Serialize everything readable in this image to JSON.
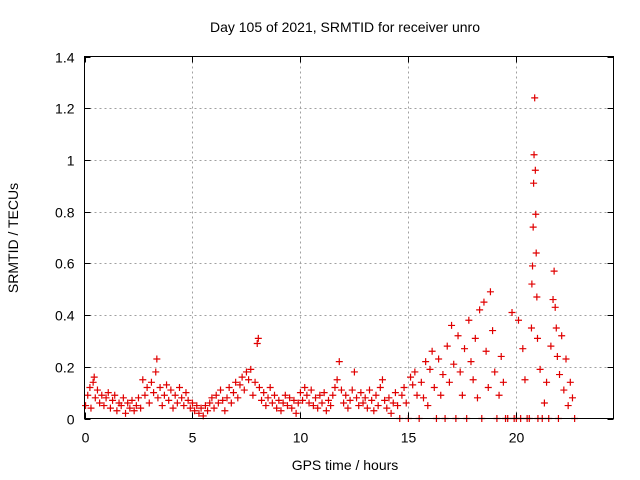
{
  "chart_data": {
    "type": "scatter",
    "title": "Day 105 of 2021, SRMTID for receiver unro",
    "xlabel": "GPS time / hours",
    "ylabel": "SRMTID / TECUs",
    "xlim": [
      0,
      24.5
    ],
    "ylim": [
      0,
      1.4
    ],
    "xticks": [
      0,
      5,
      10,
      15,
      20
    ],
    "xtick_labels": [
      "0",
      "5",
      "10",
      "15",
      "20"
    ],
    "yticks": [
      0,
      0.2,
      0.4,
      0.6,
      0.8,
      1.0,
      1.2,
      1.4
    ],
    "ytick_labels": [
      "0",
      "0.2",
      "0.4",
      "0.6",
      "0.8",
      "1",
      "1.2",
      "1.4"
    ],
    "grid": true,
    "marker": "+",
    "colors": {
      "series": "#e00000",
      "grid": "#a0a0a0",
      "axis": "#000000"
    },
    "series": [
      {
        "name": "SRMTID",
        "points": [
          [
            0.05,
            0.05
          ],
          [
            0.15,
            0.09
          ],
          [
            0.25,
            0.12
          ],
          [
            0.3,
            0.04
          ],
          [
            0.4,
            0.14
          ],
          [
            0.45,
            0.16
          ],
          [
            0.5,
            0.08
          ],
          [
            0.6,
            0.11
          ],
          [
            0.7,
            0.06
          ],
          [
            0.8,
            0.09
          ],
          [
            0.9,
            0.05
          ],
          [
            1.0,
            0.08
          ],
          [
            1.1,
            0.1
          ],
          [
            1.2,
            0.04
          ],
          [
            1.3,
            0.07
          ],
          [
            1.4,
            0.09
          ],
          [
            1.5,
            0.03
          ],
          [
            1.6,
            0.06
          ],
          [
            1.7,
            0.05
          ],
          [
            1.8,
            0.08
          ],
          [
            1.9,
            0.02
          ],
          [
            2.0,
            0.06
          ],
          [
            2.1,
            0.04
          ],
          [
            2.2,
            0.07
          ],
          [
            2.3,
            0.03
          ],
          [
            2.4,
            0.05
          ],
          [
            2.5,
            0.08
          ],
          [
            2.6,
            0.04
          ],
          [
            2.7,
            0.15
          ],
          [
            2.8,
            0.09
          ],
          [
            2.9,
            0.12
          ],
          [
            3.0,
            0.06
          ],
          [
            3.1,
            0.14
          ],
          [
            3.2,
            0.1
          ],
          [
            3.3,
            0.18
          ],
          [
            3.35,
            0.23
          ],
          [
            3.4,
            0.08
          ],
          [
            3.5,
            0.12
          ],
          [
            3.6,
            0.05
          ],
          [
            3.7,
            0.09
          ],
          [
            3.8,
            0.13
          ],
          [
            3.9,
            0.07
          ],
          [
            4.0,
            0.11
          ],
          [
            4.1,
            0.04
          ],
          [
            4.2,
            0.09
          ],
          [
            4.3,
            0.06
          ],
          [
            4.4,
            0.12
          ],
          [
            4.5,
            0.08
          ],
          [
            4.6,
            0.05
          ],
          [
            4.7,
            0.1
          ],
          [
            4.8,
            0.07
          ],
          [
            4.9,
            0.04
          ],
          [
            5.0,
            0.06
          ],
          [
            5.1,
            0.03
          ],
          [
            5.2,
            0.05
          ],
          [
            5.3,
            0.02
          ],
          [
            5.4,
            0.04
          ],
          [
            5.5,
            0.01
          ],
          [
            5.6,
            0.05
          ],
          [
            5.7,
            0.03
          ],
          [
            5.8,
            0.06
          ],
          [
            5.9,
            0.08
          ],
          [
            6.0,
            0.04
          ],
          [
            6.1,
            0.09
          ],
          [
            6.2,
            0.06
          ],
          [
            6.3,
            0.11
          ],
          [
            6.4,
            0.07
          ],
          [
            6.5,
            0.03
          ],
          [
            6.6,
            0.08
          ],
          [
            6.7,
            0.12
          ],
          [
            6.8,
            0.06
          ],
          [
            6.9,
            0.1
          ],
          [
            7.0,
            0.14
          ],
          [
            7.1,
            0.08
          ],
          [
            7.2,
            0.13
          ],
          [
            7.3,
            0.16
          ],
          [
            7.4,
            0.11
          ],
          [
            7.5,
            0.18
          ],
          [
            7.6,
            0.15
          ],
          [
            7.7,
            0.19
          ],
          [
            7.8,
            0.09
          ],
          [
            7.9,
            0.14
          ],
          [
            8.0,
            0.29
          ],
          [
            8.05,
            0.31
          ],
          [
            8.1,
            0.12
          ],
          [
            8.2,
            0.07
          ],
          [
            8.3,
            0.1
          ],
          [
            8.4,
            0.05
          ],
          [
            8.5,
            0.08
          ],
          [
            8.6,
            0.12
          ],
          [
            8.7,
            0.06
          ],
          [
            8.8,
            0.09
          ],
          [
            8.9,
            0.04
          ],
          [
            9.0,
            0.07
          ],
          [
            9.1,
            0.03
          ],
          [
            9.2,
            0.06
          ],
          [
            9.3,
            0.09
          ],
          [
            9.4,
            0.05
          ],
          [
            9.5,
            0.08
          ],
          [
            9.6,
            0.04
          ],
          [
            9.7,
            0.07
          ],
          [
            9.8,
            0.02
          ],
          [
            9.9,
            0.06
          ],
          [
            10.0,
            0.1
          ],
          [
            10.1,
            0.07
          ],
          [
            10.2,
            0.12
          ],
          [
            10.3,
            0.09
          ],
          [
            10.4,
            0.06
          ],
          [
            10.5,
            0.11
          ],
          [
            10.6,
            0.05
          ],
          [
            10.7,
            0.08
          ],
          [
            10.8,
            0.04
          ],
          [
            10.9,
            0.09
          ],
          [
            11.0,
            0.06
          ],
          [
            11.1,
            0.1
          ],
          [
            11.2,
            0.03
          ],
          [
            11.3,
            0.07
          ],
          [
            11.4,
            0.05
          ],
          [
            11.5,
            0.09
          ],
          [
            11.6,
            0.12
          ],
          [
            11.7,
            0.15
          ],
          [
            11.8,
            0.22
          ],
          [
            11.9,
            0.11
          ],
          [
            12.0,
            0.06
          ],
          [
            12.1,
            0.09
          ],
          [
            12.2,
            0.04
          ],
          [
            12.3,
            0.07
          ],
          [
            12.4,
            0.11
          ],
          [
            12.5,
            0.18
          ],
          [
            12.6,
            0.08
          ],
          [
            12.7,
            0.05
          ],
          [
            12.8,
            0.1
          ],
          [
            12.9,
            0.06
          ],
          [
            13.0,
            0.08
          ],
          [
            13.1,
            0.04
          ],
          [
            13.2,
            0.11
          ],
          [
            13.3,
            0.07
          ],
          [
            13.4,
            0.03
          ],
          [
            13.5,
            0.09
          ],
          [
            13.6,
            0.05
          ],
          [
            13.7,
            0.12
          ],
          [
            13.8,
            0.15
          ],
          [
            13.9,
            0.07
          ],
          [
            14.0,
            0.04
          ],
          [
            14.1,
            0.08
          ],
          [
            14.2,
            0.02
          ],
          [
            14.3,
            0.06
          ],
          [
            14.4,
            0.1
          ],
          [
            14.5,
            0.05
          ],
          [
            14.6,
            0.0
          ],
          [
            14.7,
            0.09
          ],
          [
            14.8,
            0.12
          ],
          [
            14.9,
            0.06
          ],
          [
            15.0,
            0.0
          ],
          [
            15.1,
            0.16
          ],
          [
            15.2,
            0.13
          ],
          [
            15.3,
            0.18
          ],
          [
            15.4,
            0.09
          ],
          [
            15.5,
            0.0
          ],
          [
            15.6,
            0.14
          ],
          [
            15.7,
            0.08
          ],
          [
            15.8,
            0.22
          ],
          [
            15.9,
            0.05
          ],
          [
            16.0,
            0.19
          ],
          [
            16.1,
            0.26
          ],
          [
            16.2,
            0.12
          ],
          [
            16.3,
            0.0
          ],
          [
            16.4,
            0.23
          ],
          [
            16.5,
            0.09
          ],
          [
            16.6,
            0.17
          ],
          [
            16.7,
            0.0
          ],
          [
            16.8,
            0.28
          ],
          [
            16.9,
            0.14
          ],
          [
            17.0,
            0.36
          ],
          [
            17.1,
            0.21
          ],
          [
            17.2,
            0.0
          ],
          [
            17.3,
            0.32
          ],
          [
            17.4,
            0.18
          ],
          [
            17.5,
            0.09
          ],
          [
            17.6,
            0.27
          ],
          [
            17.7,
            0.0
          ],
          [
            17.8,
            0.38
          ],
          [
            17.9,
            0.22
          ],
          [
            18.0,
            0.15
          ],
          [
            18.1,
            0.31
          ],
          [
            18.2,
            0.08
          ],
          [
            18.3,
            0.42
          ],
          [
            18.4,
            0.0
          ],
          [
            18.5,
            0.45
          ],
          [
            18.6,
            0.26
          ],
          [
            18.7,
            0.12
          ],
          [
            18.8,
            0.49
          ],
          [
            18.9,
            0.34
          ],
          [
            19.0,
            0.18
          ],
          [
            19.1,
            0.0
          ],
          [
            19.2,
            0.09
          ],
          [
            19.3,
            0.24
          ],
          [
            19.4,
            0.14
          ],
          [
            19.5,
            0.0
          ],
          [
            19.6,
            0.0
          ],
          [
            19.8,
            0.41
          ],
          [
            19.9,
            0.0
          ],
          [
            20.0,
            0.0
          ],
          [
            20.1,
            0.38
          ],
          [
            20.2,
            0.0
          ],
          [
            20.3,
            0.27
          ],
          [
            20.4,
            0.15
          ],
          [
            20.5,
            0.0
          ],
          [
            20.6,
            0.0
          ],
          [
            20.7,
            0.35
          ],
          [
            20.72,
            0.52
          ],
          [
            20.75,
            0.59
          ],
          [
            20.78,
            0.74
          ],
          [
            20.8,
            0.91
          ],
          [
            20.82,
            1.02
          ],
          [
            20.85,
            1.24
          ],
          [
            20.88,
            0.96
          ],
          [
            20.9,
            0.79
          ],
          [
            20.92,
            0.64
          ],
          [
            20.95,
            0.47
          ],
          [
            20.98,
            0.31
          ],
          [
            21.0,
            0.0
          ],
          [
            21.1,
            0.19
          ],
          [
            21.2,
            0.0
          ],
          [
            21.3,
            0.06
          ],
          [
            21.4,
            0.14
          ],
          [
            21.5,
            0.0
          ],
          [
            21.6,
            0.28
          ],
          [
            21.7,
            0.46
          ],
          [
            21.75,
            0.57
          ],
          [
            21.8,
            0.43
          ],
          [
            21.85,
            0.35
          ],
          [
            21.9,
            0.24
          ],
          [
            21.95,
            0.0
          ],
          [
            22.0,
            0.17
          ],
          [
            22.1,
            0.32
          ],
          [
            22.2,
            0.11
          ],
          [
            22.3,
            0.23
          ],
          [
            22.4,
            0.05
          ],
          [
            22.5,
            0.14
          ],
          [
            22.6,
            0.08
          ],
          [
            22.7,
            0.0
          ]
        ]
      }
    ]
  }
}
